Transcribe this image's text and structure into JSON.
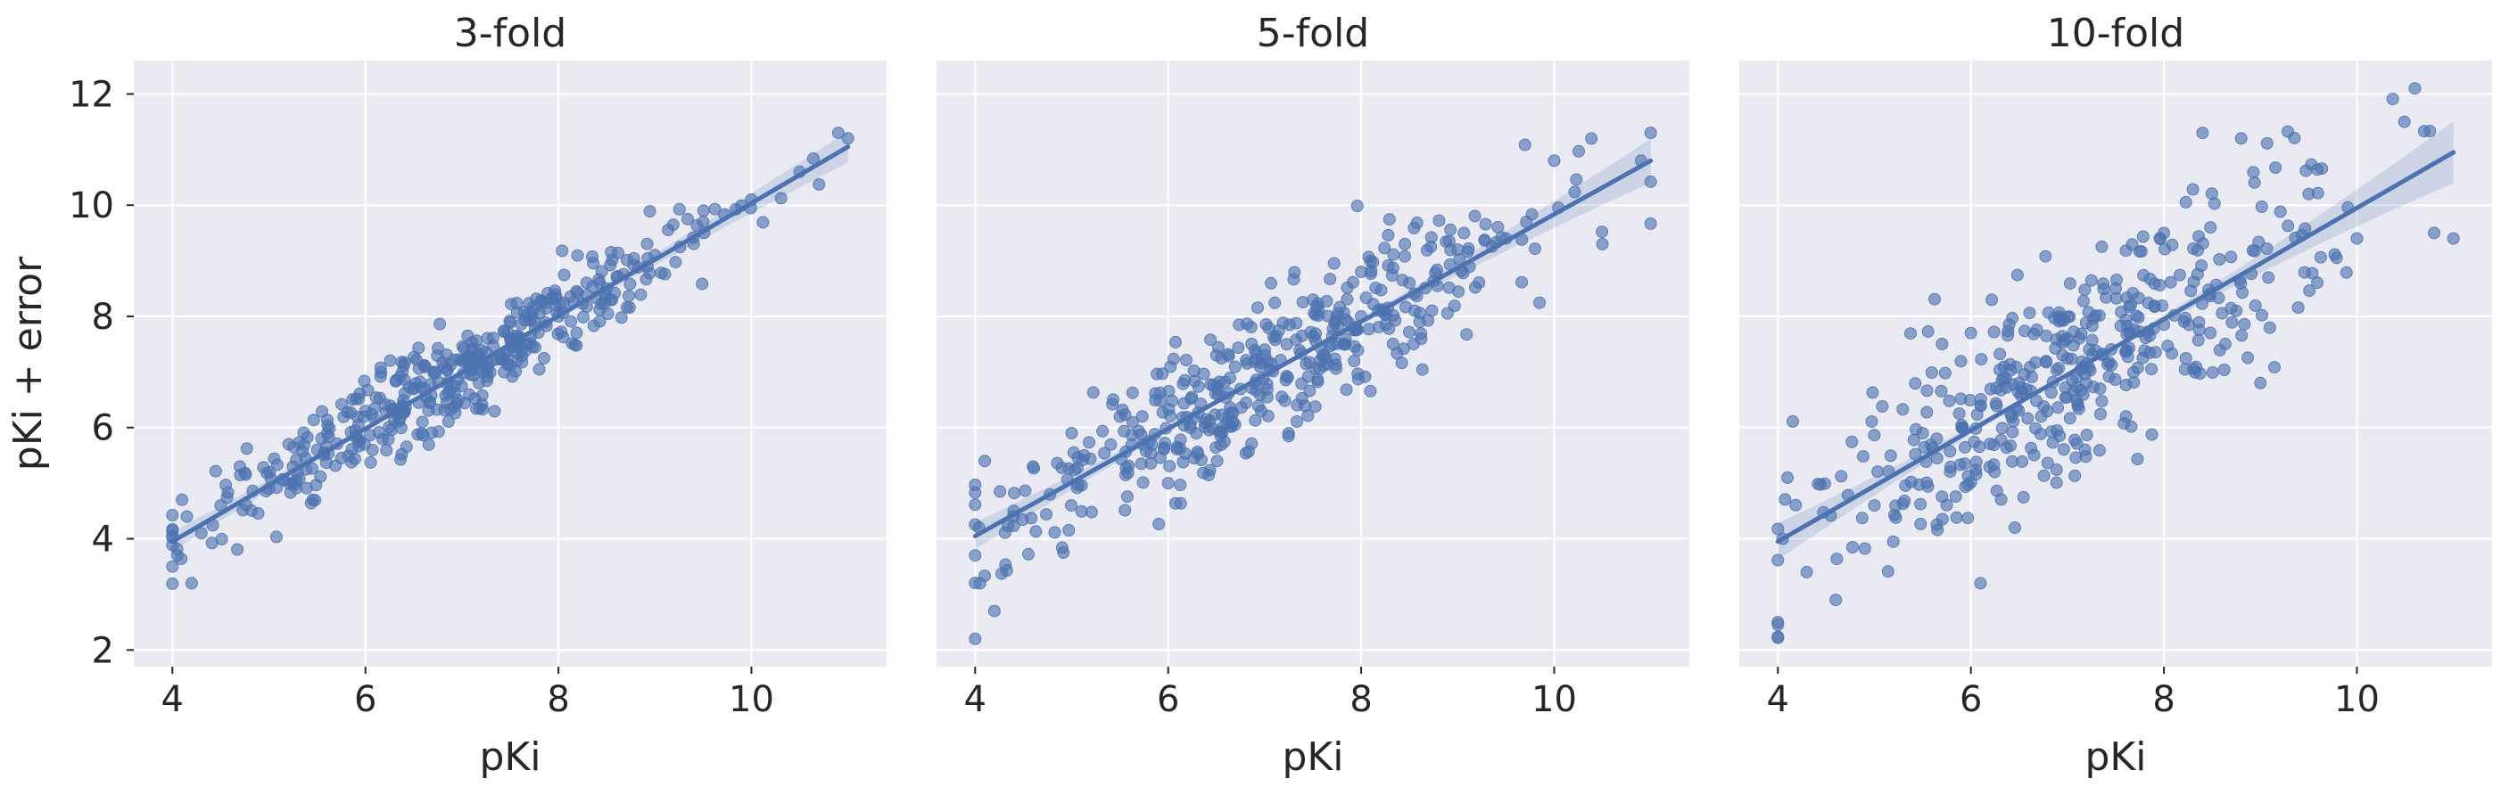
{
  "chart_data": [
    {
      "type": "scatter",
      "title": "3-fold",
      "xlabel": "pKi",
      "ylabel": "pKi + error",
      "xlim": [
        3.6,
        11.4
      ],
      "ylim": [
        1.7,
        12.6
      ],
      "xticks": [
        4,
        6,
        8,
        10
      ],
      "yticks": [
        2,
        4,
        6,
        8,
        10,
        12
      ],
      "grid": true,
      "point_color": "#4c72b0",
      "line_color": "#4c72b0",
      "noise_sd": 0.42,
      "n_points": 420,
      "regression": {
        "x": [
          4,
          11
        ],
        "y": [
          3.95,
          11.05
        ]
      },
      "series": [
        {
          "name": "",
          "x": [
            4.0,
            4.05,
            4.1,
            4.15,
            4.2,
            4.3,
            4.5,
            4.7,
            5.0,
            5.5,
            6.0,
            6.5,
            7.0,
            7.5,
            8.0,
            8.5,
            9.0,
            9.5,
            10.0,
            10.5,
            10.9,
            11.0
          ],
          "y": [
            3.5,
            3.7,
            4.7,
            4.4,
            3.2,
            4.1,
            4.6,
            5.3,
            4.9,
            5.6,
            6.3,
            6.7,
            7.2,
            7.6,
            8.0,
            8.5,
            9.1,
            9.7,
            10.1,
            10.6,
            11.3,
            11.2
          ]
        }
      ]
    },
    {
      "type": "scatter",
      "title": "5-fold",
      "xlabel": "pKi",
      "ylabel": "",
      "xlim": [
        3.6,
        11.4
      ],
      "ylim": [
        1.7,
        12.6
      ],
      "xticks": [
        4,
        6,
        8,
        10
      ],
      "yticks": [
        2,
        4,
        6,
        8,
        10,
        12
      ],
      "grid": true,
      "point_color": "#4c72b0",
      "line_color": "#4c72b0",
      "noise_sd": 0.62,
      "n_points": 420,
      "regression": {
        "x": [
          4,
          11
        ],
        "y": [
          4.05,
          10.8
        ]
      },
      "series": [
        {
          "name": "",
          "x": [
            4.0,
            4.05,
            4.1,
            4.2,
            4.4,
            4.6,
            5.0,
            5.5,
            6.0,
            6.5,
            7.0,
            7.5,
            8.0,
            8.5,
            9.0,
            9.5,
            10.0,
            10.5,
            10.9,
            11.0
          ],
          "y": [
            2.2,
            3.2,
            5.4,
            2.7,
            4.5,
            5.3,
            5.9,
            6.2,
            5.0,
            7.3,
            7.4,
            8.3,
            8.0,
            8.6,
            9.2,
            9.4,
            10.8,
            9.3,
            10.8,
            11.3
          ]
        }
      ]
    },
    {
      "type": "scatter",
      "title": "10-fold",
      "xlabel": "pKi",
      "ylabel": "",
      "xlim": [
        3.6,
        11.4
      ],
      "ylim": [
        1.7,
        12.6
      ],
      "xticks": [
        4,
        6,
        8,
        10
      ],
      "yticks": [
        2,
        4,
        6,
        8,
        10,
        12
      ],
      "grid": true,
      "point_color": "#4c72b0",
      "line_color": "#4c72b0",
      "noise_sd": 0.9,
      "n_points": 420,
      "regression": {
        "x": [
          4,
          11
        ],
        "y": [
          3.95,
          10.95
        ]
      },
      "series": [
        {
          "name": "",
          "x": [
            4.0,
            4.05,
            4.1,
            4.3,
            4.6,
            5.0,
            5.5,
            6.0,
            6.1,
            6.5,
            7.0,
            7.5,
            8.0,
            8.4,
            8.8,
            9.0,
            9.5,
            10.0,
            10.6,
            10.8,
            11.0
          ],
          "y": [
            2.5,
            4.0,
            5.1,
            3.4,
            2.9,
            4.6,
            5.9,
            7.7,
            3.2,
            6.8,
            7.6,
            8.5,
            9.5,
            11.3,
            11.2,
            6.8,
            10.2,
            9.4,
            12.1,
            9.5,
            9.4
          ]
        }
      ]
    }
  ]
}
